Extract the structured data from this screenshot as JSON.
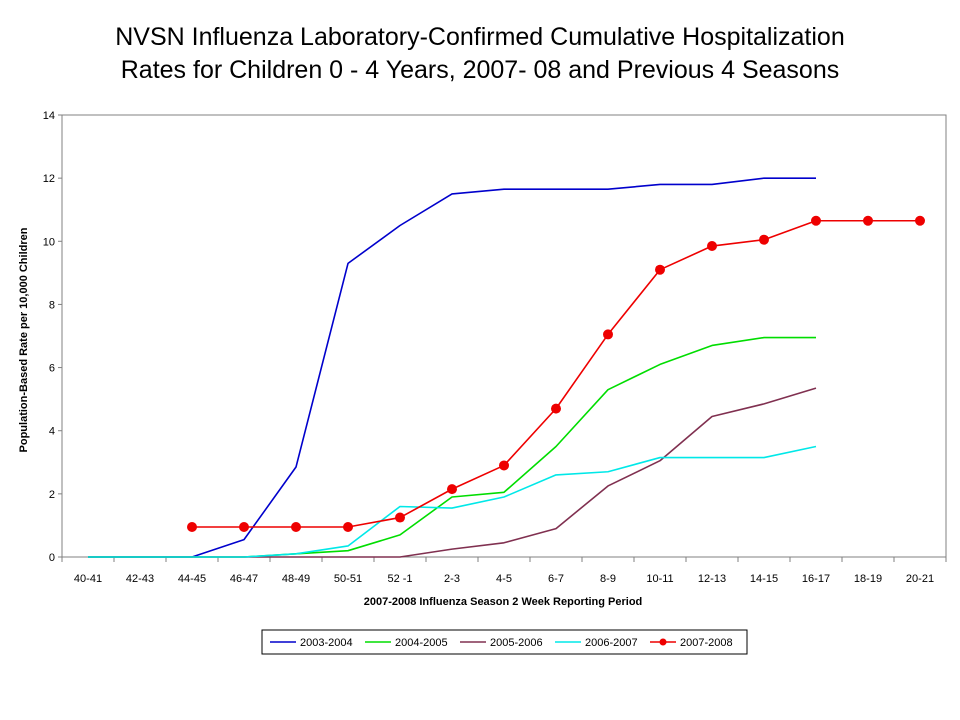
{
  "chart_data": {
    "type": "line",
    "title": "NVSN Influenza Laboratory-Confirmed Cumulative Hospitalization",
    "subtitle": "Rates for Children 0 - 4 Years, 2007- 08 and Previous 4 Seasons",
    "xlabel": "2007-2008 Influenza Season 2 Week Reporting Period",
    "ylabel": "Population-Based Rate per 10,000 Children",
    "ylim": [
      0,
      14
    ],
    "yticks": [
      "0",
      "2",
      "4",
      "6",
      "8",
      "10",
      "12",
      "14"
    ],
    "categories": [
      "40-41",
      "42-43",
      "44-45",
      "46-47",
      "48-49",
      "50-51",
      "52 -1",
      "2-3",
      "4-5",
      "6-7",
      "8-9",
      "10-11",
      "12-13",
      "14-15",
      "16-17",
      "18-19",
      "20-21"
    ],
    "grid": false,
    "legend_position": "bottom",
    "series": [
      {
        "name": "2003-2004",
        "color": "#0000cc",
        "marker": "none",
        "values": [
          0,
          0,
          0,
          0.55,
          2.85,
          9.3,
          10.5,
          11.5,
          11.65,
          11.65,
          11.65,
          11.8,
          11.8,
          12.0,
          12.0,
          null,
          null
        ]
      },
      {
        "name": "2004-2005",
        "color": "#00dd00",
        "marker": "none",
        "values": [
          0,
          0,
          0,
          0,
          0.1,
          0.2,
          0.7,
          1.9,
          2.05,
          3.5,
          5.3,
          6.1,
          6.7,
          6.95,
          6.95,
          null,
          null
        ]
      },
      {
        "name": "2005-2006",
        "color": "#803050",
        "marker": "none",
        "values": [
          0,
          0,
          0,
          0,
          0,
          0,
          0,
          0.25,
          0.45,
          0.9,
          2.25,
          3.05,
          4.45,
          4.85,
          5.35,
          null,
          null
        ]
      },
      {
        "name": "2006-2007",
        "color": "#00e8e8",
        "marker": "none",
        "values": [
          0,
          0,
          0,
          0,
          0.1,
          0.35,
          1.6,
          1.55,
          1.9,
          2.6,
          2.7,
          3.15,
          3.15,
          3.15,
          3.5,
          null,
          null
        ]
      },
      {
        "name": "2007-2008",
        "color": "#ee0000",
        "marker": "circle",
        "values": [
          null,
          null,
          0.95,
          0.95,
          0.95,
          0.95,
          1.25,
          2.15,
          2.9,
          4.7,
          7.05,
          9.1,
          9.85,
          10.05,
          10.65,
          10.65,
          10.65
        ]
      }
    ]
  }
}
